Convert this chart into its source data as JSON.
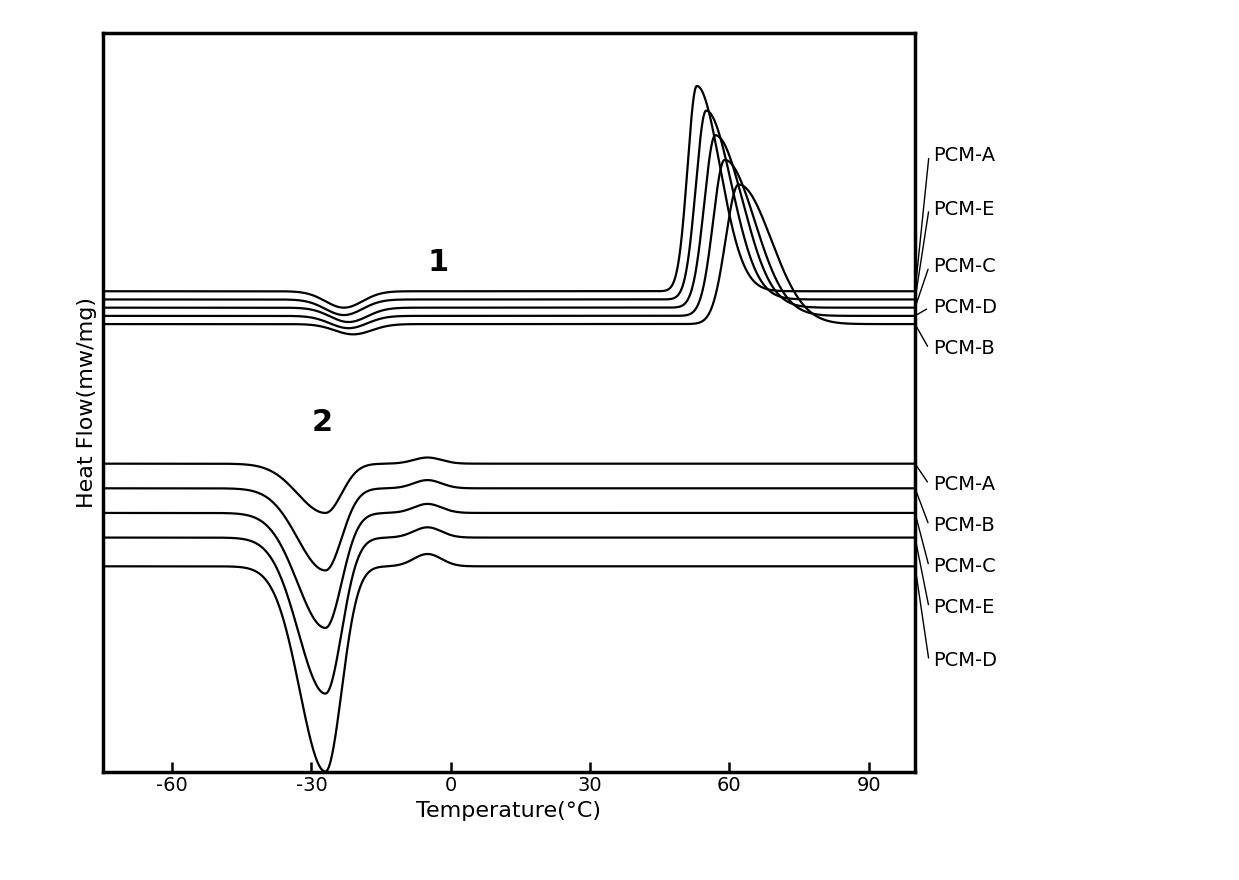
{
  "xlabel": "Temperature(°C)",
  "ylabel": "Heat Flow(mw/mg)",
  "xlim": [
    -75,
    100
  ],
  "ylim": [
    -9.5,
    8.5
  ],
  "xticks": [
    -60,
    -30,
    0,
    30,
    60,
    90
  ],
  "group1_labels": [
    "PCM-A",
    "PCM-E",
    "PCM-C",
    "PCM-D",
    "PCM-B"
  ],
  "group2_labels": [
    "PCM-A",
    "PCM-B",
    "PCM-C",
    "PCM-E",
    "PCM-D"
  ],
  "axis_fontsize": 16,
  "tick_fontsize": 14,
  "label_fontsize": 14
}
